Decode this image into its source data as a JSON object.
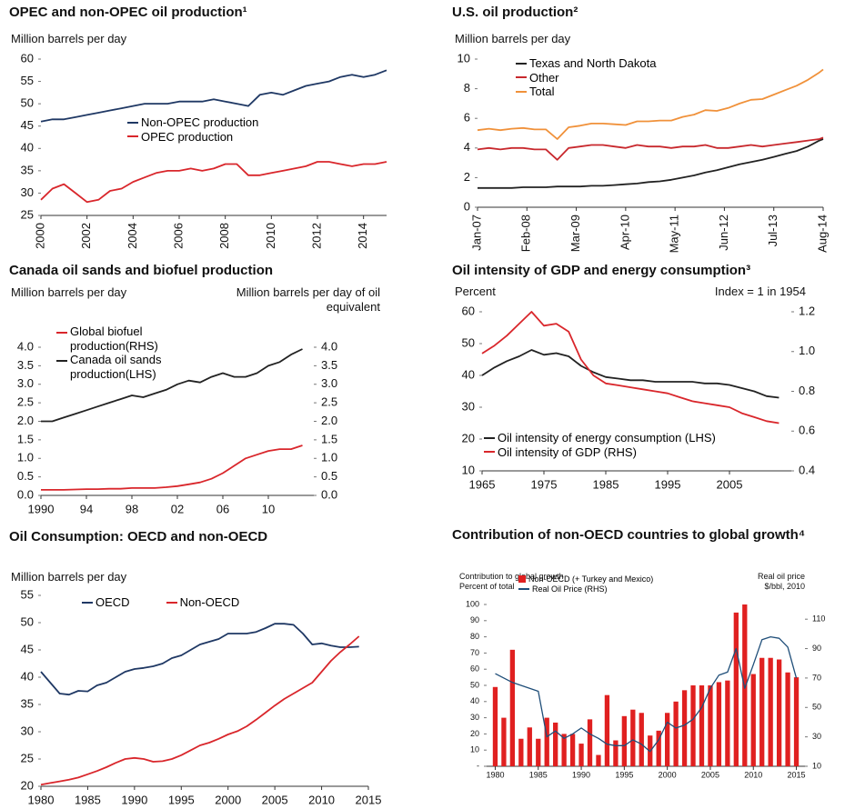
{
  "chart_data": [
    {
      "type": "line",
      "title": "OPEC and non-OPEC oil production¹",
      "ylabel": "Million barrels per day",
      "x": [
        2000,
        2000.5,
        2001,
        2001.5,
        2002,
        2002.5,
        2003,
        2003.5,
        2004,
        2004.5,
        2005,
        2005.5,
        2006,
        2006.5,
        2007,
        2007.5,
        2008,
        2008.5,
        2009,
        2009.5,
        2010,
        2010.5,
        2011,
        2011.5,
        2012,
        2012.5,
        2013,
        2013.5,
        2014,
        2014.5,
        2015
      ],
      "series": [
        {
          "name": "Non-OPEC production",
          "color": "#1f3864",
          "values": [
            46,
            46.5,
            46.5,
            47,
            47.5,
            48,
            48.5,
            49,
            49.5,
            50,
            50,
            50,
            50.5,
            50.5,
            50.5,
            51,
            50.5,
            50,
            49.5,
            52,
            52.5,
            52,
            53,
            54,
            54.5,
            55,
            56,
            56.5,
            56,
            56.5,
            57.5
          ]
        },
        {
          "name": "OPEC production",
          "color": "#d9262b",
          "values": [
            28.5,
            31,
            32,
            30,
            28,
            28.5,
            30.5,
            31,
            32.5,
            33.5,
            34.5,
            35,
            35,
            35.5,
            35,
            35.5,
            36.5,
            36.5,
            34,
            34,
            34.5,
            35,
            35.5,
            36,
            37,
            37,
            36.5,
            36,
            36.5,
            36.5,
            37
          ]
        }
      ],
      "xlim": [
        2000,
        2015
      ],
      "xticks": [
        2000,
        2002,
        2004,
        2006,
        2008,
        2010,
        2012,
        2014
      ],
      "ylim": [
        25,
        60
      ],
      "yticks": [
        25,
        30,
        35,
        40,
        45,
        50,
        55,
        60
      ],
      "grid": false
    },
    {
      "type": "line",
      "title": "U.S. oil production²",
      "ylabel": "Million barrels per day",
      "x": [
        "2007-01",
        "2007-04",
        "2007-07",
        "2007-10",
        "2008-01",
        "2008-04",
        "2008-07",
        "2008-10",
        "2009-01",
        "2009-04",
        "2009-07",
        "2009-10",
        "2010-01",
        "2010-04",
        "2010-07",
        "2010-10",
        "2011-01",
        "2011-04",
        "2011-07",
        "2011-10",
        "2012-01",
        "2012-04",
        "2012-07",
        "2012-10",
        "2013-01",
        "2013-04",
        "2013-07",
        "2013-10",
        "2014-01",
        "2014-04",
        "2014-07",
        "2014-08"
      ],
      "series": [
        {
          "name": "Texas and North Dakota",
          "color": "#222222",
          "values": [
            1.3,
            1.3,
            1.3,
            1.3,
            1.35,
            1.35,
            1.35,
            1.4,
            1.4,
            1.4,
            1.45,
            1.45,
            1.5,
            1.55,
            1.6,
            1.7,
            1.75,
            1.85,
            2.0,
            2.15,
            2.35,
            2.5,
            2.7,
            2.9,
            3.05,
            3.2,
            3.4,
            3.6,
            3.8,
            4.1,
            4.5,
            4.6
          ]
        },
        {
          "name": "Other",
          "color": "#c8282d",
          "values": [
            3.9,
            4.0,
            3.9,
            4.0,
            4.0,
            3.9,
            3.9,
            3.2,
            4.0,
            4.1,
            4.2,
            4.2,
            4.1,
            4.0,
            4.2,
            4.1,
            4.1,
            4.0,
            4.1,
            4.1,
            4.2,
            4.0,
            4.0,
            4.1,
            4.2,
            4.1,
            4.2,
            4.3,
            4.4,
            4.5,
            4.6,
            4.7
          ]
        },
        {
          "name": "Total",
          "color": "#f0913a",
          "values": [
            5.2,
            5.3,
            5.2,
            5.3,
            5.35,
            5.25,
            5.25,
            4.6,
            5.4,
            5.5,
            5.65,
            5.65,
            5.6,
            5.55,
            5.8,
            5.8,
            5.85,
            5.85,
            6.1,
            6.25,
            6.55,
            6.5,
            6.7,
            7.0,
            7.25,
            7.3,
            7.6,
            7.9,
            8.2,
            8.6,
            9.1,
            9.3
          ]
        }
      ],
      "xlim": [
        "2007-01",
        "2014-08"
      ],
      "xticks": [
        {
          "value": "2007-01",
          "label": "Jan-07"
        },
        {
          "value": "2008-02",
          "label": "Feb-08"
        },
        {
          "value": "2009-03",
          "label": "Mar-09"
        },
        {
          "value": "2010-04",
          "label": "Apr-10"
        },
        {
          "value": "2011-05",
          "label": "May-11"
        },
        {
          "value": "2012-06",
          "label": "Jun-12"
        },
        {
          "value": "2013-07",
          "label": "Jul-13"
        },
        {
          "value": "2014-08",
          "label": "Aug-14"
        }
      ],
      "ylim": [
        0,
        10
      ],
      "yticks": [
        0,
        2,
        4,
        6,
        8,
        10
      ],
      "grid": false
    },
    {
      "type": "line",
      "title": "Canada oil sands and biofuel production",
      "ylabel": "Million barrels per day",
      "y2label": "Million barrels per day of oil equivalent",
      "x": [
        1990,
        1991,
        1992,
        1993,
        1994,
        1995,
        1996,
        1997,
        1998,
        1999,
        2000,
        2001,
        2002,
        2003,
        2004,
        2005,
        2006,
        2007,
        2008,
        2009,
        2010,
        2011,
        2012,
        2013
      ],
      "series": [
        {
          "name": "Global biofuel production(RHS)",
          "color": "#d9262b",
          "axis": "y2",
          "values": [
            0.15,
            0.15,
            0.15,
            0.16,
            0.17,
            0.17,
            0.18,
            0.18,
            0.2,
            0.2,
            0.2,
            0.22,
            0.25,
            0.3,
            0.35,
            0.45,
            0.6,
            0.8,
            1.0,
            1.1,
            1.2,
            1.25,
            1.25,
            1.35
          ]
        },
        {
          "name": "Canada oil sands production(LHS)",
          "color": "#222222",
          "values": [
            2.0,
            2.0,
            2.1,
            2.2,
            2.3,
            2.4,
            2.5,
            2.6,
            2.7,
            2.65,
            2.75,
            2.85,
            3.0,
            3.1,
            3.05,
            3.2,
            3.3,
            3.2,
            3.2,
            3.3,
            3.5,
            3.6,
            3.8,
            3.95
          ]
        }
      ],
      "xlim": [
        1990,
        2014
      ],
      "xticks": [
        1990,
        {
          "value": 1994,
          "label": "94"
        },
        {
          "value": 1998,
          "label": "98"
        },
        {
          "value": 2002,
          "label": "02"
        },
        {
          "value": 2006,
          "label": "06"
        },
        {
          "value": 2010,
          "label": "10"
        }
      ],
      "ylim": [
        0,
        4
      ],
      "yticks": [
        {
          "value": 0,
          "label": "0.0"
        },
        0.5,
        {
          "value": 1,
          "label": "1.0"
        },
        1.5,
        {
          "value": 2,
          "label": "2.0"
        },
        2.5,
        {
          "value": 3,
          "label": "3.0"
        },
        3.5,
        {
          "value": 4,
          "label": "4.0"
        }
      ],
      "y2lim": [
        0,
        4
      ],
      "y2ticks": [
        {
          "value": 0,
          "label": "0.0"
        },
        0.5,
        {
          "value": 1,
          "label": "1.0"
        },
        1.5,
        {
          "value": 2,
          "label": "2.0"
        },
        2.5,
        {
          "value": 3,
          "label": "3.0"
        },
        3.5,
        {
          "value": 4,
          "label": "4.0"
        }
      ],
      "grid": false
    },
    {
      "type": "line",
      "title": "Oil intensity of GDP and energy consumption³",
      "ylabel": "Percent",
      "y2label": "Index = 1 in 1954",
      "x": [
        1965,
        1967,
        1969,
        1971,
        1973,
        1975,
        1977,
        1979,
        1981,
        1983,
        1985,
        1987,
        1989,
        1991,
        1993,
        1995,
        1997,
        1999,
        2001,
        2003,
        2005,
        2007,
        2009,
        2011,
        2013
      ],
      "series": [
        {
          "name": "Oil intensity of energy consumption (LHS)",
          "color": "#222222",
          "values": [
            40,
            42.5,
            44.5,
            46,
            48,
            46.5,
            47,
            46,
            43,
            41,
            39.5,
            39,
            38.5,
            38.5,
            38,
            38,
            38,
            38,
            37.5,
            37.5,
            37,
            36,
            35,
            33.5,
            33
          ]
        },
        {
          "name": "Oil intensity of GDP (RHS)",
          "color": "#d9262b",
          "axis": "y2",
          "values": [
            0.99,
            1.03,
            1.08,
            1.14,
            1.2,
            1.13,
            1.14,
            1.1,
            0.96,
            0.88,
            0.84,
            0.83,
            0.82,
            0.81,
            0.8,
            0.79,
            0.77,
            0.75,
            0.74,
            0.73,
            0.72,
            0.69,
            0.67,
            0.65,
            0.64
          ]
        }
      ],
      "xlim": [
        1965,
        2015
      ],
      "xticks": [
        1965,
        1975,
        1985,
        1995,
        2005
      ],
      "ylim": [
        10,
        60
      ],
      "yticks": [
        10,
        20,
        30,
        40,
        50,
        60
      ],
      "y2lim": [
        0.4,
        1.2
      ],
      "y2ticks": [
        0.4,
        0.6,
        0.8,
        {
          "value": 1,
          "label": "1.0"
        },
        1.2
      ],
      "grid": false
    },
    {
      "type": "line",
      "title": "Oil Consumption: OECD and non-OECD",
      "ylabel": "Million barrels per day",
      "x": [
        1980,
        1981,
        1982,
        1983,
        1984,
        1985,
        1986,
        1987,
        1988,
        1989,
        1990,
        1991,
        1992,
        1993,
        1994,
        1995,
        1996,
        1997,
        1998,
        1999,
        2000,
        2001,
        2002,
        2003,
        2004,
        2005,
        2006,
        2007,
        2008,
        2009,
        2010,
        2011,
        2012,
        2013,
        2014
      ],
      "series": [
        {
          "name": "OECD",
          "color": "#1f3864",
          "values": [
            41,
            39,
            37,
            36.8,
            37.5,
            37.4,
            38.5,
            39,
            40,
            41,
            41.5,
            41.7,
            42,
            42.5,
            43.5,
            44,
            45,
            46,
            46.5,
            47,
            48,
            48,
            48,
            48.3,
            49,
            49.8,
            49.8,
            49.6,
            48,
            46,
            46.2,
            45.8,
            45.5,
            45.5,
            45.6
          ]
        },
        {
          "name": "Non-OECD",
          "color": "#d9262b",
          "values": [
            20.3,
            20.6,
            20.9,
            21.2,
            21.6,
            22.2,
            22.8,
            23.5,
            24.3,
            25,
            25.2,
            25.0,
            24.5,
            24.6,
            25.0,
            25.7,
            26.6,
            27.5,
            28,
            28.7,
            29.5,
            30.1,
            31,
            32.2,
            33.5,
            34.8,
            36,
            37,
            38,
            39,
            41,
            43,
            44.6,
            46,
            47.5
          ]
        }
      ],
      "xlim": [
        1980,
        2015
      ],
      "xticks": [
        1980,
        1985,
        1990,
        1995,
        2000,
        2005,
        2010,
        2015
      ],
      "ylim": [
        20,
        55
      ],
      "yticks": [
        20,
        25,
        30,
        35,
        40,
        45,
        50,
        55
      ],
      "grid": false
    },
    {
      "type": "combo",
      "title": "Contribution of non-OECD countries to global growth⁴",
      "ylabel": [
        "Contribution to global growth",
        "Percent of total"
      ],
      "y2label": [
        "Real oil price",
        "$/bbl, 2010"
      ],
      "x": [
        1980,
        1981,
        1982,
        1983,
        1984,
        1985,
        1986,
        1987,
        1988,
        1989,
        1990,
        1991,
        1992,
        1993,
        1994,
        1995,
        1996,
        1997,
        1998,
        1999,
        2000,
        2001,
        2002,
        2003,
        2004,
        2005,
        2006,
        2007,
        2008,
        2009,
        2010,
        2011,
        2012,
        2013,
        2014,
        2015
      ],
      "series": [
        {
          "name": "Non-OECD (+ Turkey and Mexico)",
          "type": "bar",
          "color": "#e02020",
          "values": [
            49,
            30,
            72,
            17,
            24,
            17,
            30,
            27,
            20,
            20,
            14,
            29,
            7,
            44,
            16,
            31,
            35,
            33,
            19,
            22,
            33,
            40,
            47,
            50,
            50,
            50,
            52,
            53,
            95,
            100,
            57,
            67,
            67,
            66,
            58,
            55
          ]
        },
        {
          "name": "Real Oil Price (RHS)",
          "type": "line",
          "axis": "y2",
          "color": "#1f4e79",
          "values": [
            73,
            70,
            67,
            65,
            63,
            61,
            30,
            34,
            29,
            32,
            36,
            32,
            29,
            25,
            24,
            24,
            28,
            25,
            20,
            28,
            40,
            36,
            38,
            42,
            50,
            63,
            72,
            74,
            90,
            63,
            79,
            96,
            98,
            97,
            91,
            70
          ]
        }
      ],
      "xlim": [
        1979,
        2016
      ],
      "xticks": [
        1980,
        1985,
        1990,
        1995,
        2000,
        2005,
        2010,
        2015
      ],
      "ylim": [
        0,
        100
      ],
      "yticks": [
        {
          "value": 0,
          "label": "-"
        },
        10,
        20,
        30,
        40,
        50,
        60,
        70,
        80,
        90,
        100
      ],
      "y2lim": [
        10,
        120
      ],
      "y2ticks": [
        10,
        30,
        50,
        70,
        90,
        110
      ],
      "grid": false
    }
  ]
}
